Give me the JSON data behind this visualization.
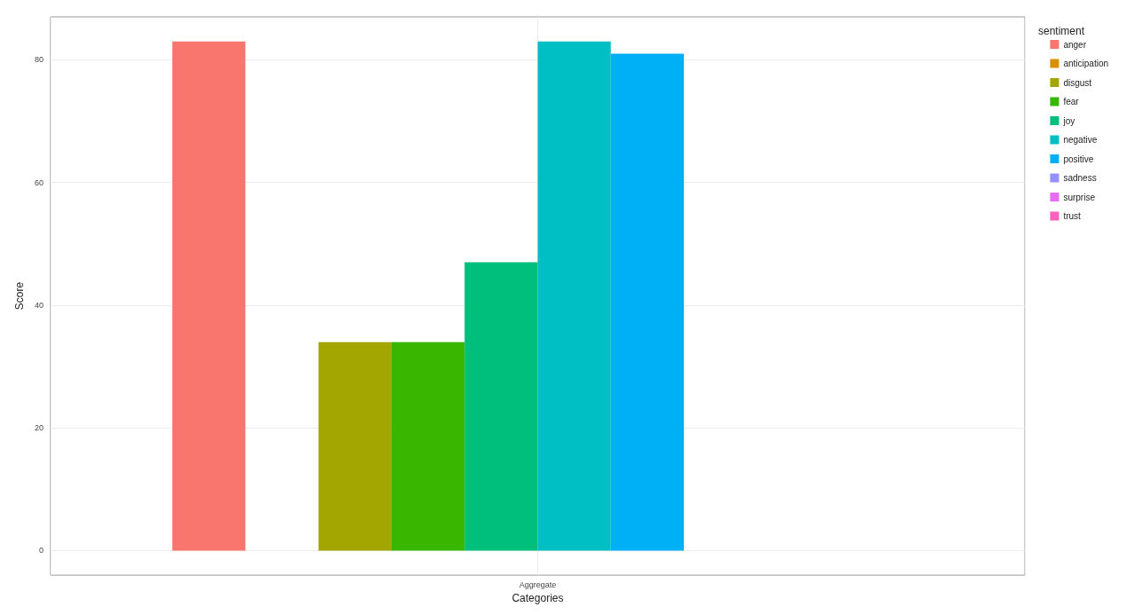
{
  "chart_data": {
    "type": "bar",
    "xlabel": "Categories",
    "ylabel": "Score",
    "legend_title": "sentiment",
    "categories": [
      "Aggregate"
    ],
    "series": [
      {
        "name": "anger",
        "color": "#f8766d",
        "values": [
          83
        ]
      },
      {
        "name": "anticipation",
        "color": "#d89000",
        "values": [
          null
        ]
      },
      {
        "name": "disgust",
        "color": "#a3a500",
        "values": [
          34
        ]
      },
      {
        "name": "fear",
        "color": "#39b600",
        "values": [
          34
        ]
      },
      {
        "name": "joy",
        "color": "#00bf7d",
        "values": [
          47
        ]
      },
      {
        "name": "negative",
        "color": "#00bfc4",
        "values": [
          83
        ]
      },
      {
        "name": "positive",
        "color": "#00b0f6",
        "values": [
          81
        ]
      },
      {
        "name": "sadness",
        "color": "#9590ff",
        "values": [
          null
        ]
      },
      {
        "name": "surprise",
        "color": "#e76bf3",
        "values": [
          null
        ]
      },
      {
        "name": "trust",
        "color": "#ff62bc",
        "values": [
          null
        ]
      }
    ],
    "ylim": [
      -4,
      87
    ],
    "yticks": [
      0,
      20,
      40,
      60,
      80
    ],
    "grid": true,
    "legend": "right"
  }
}
